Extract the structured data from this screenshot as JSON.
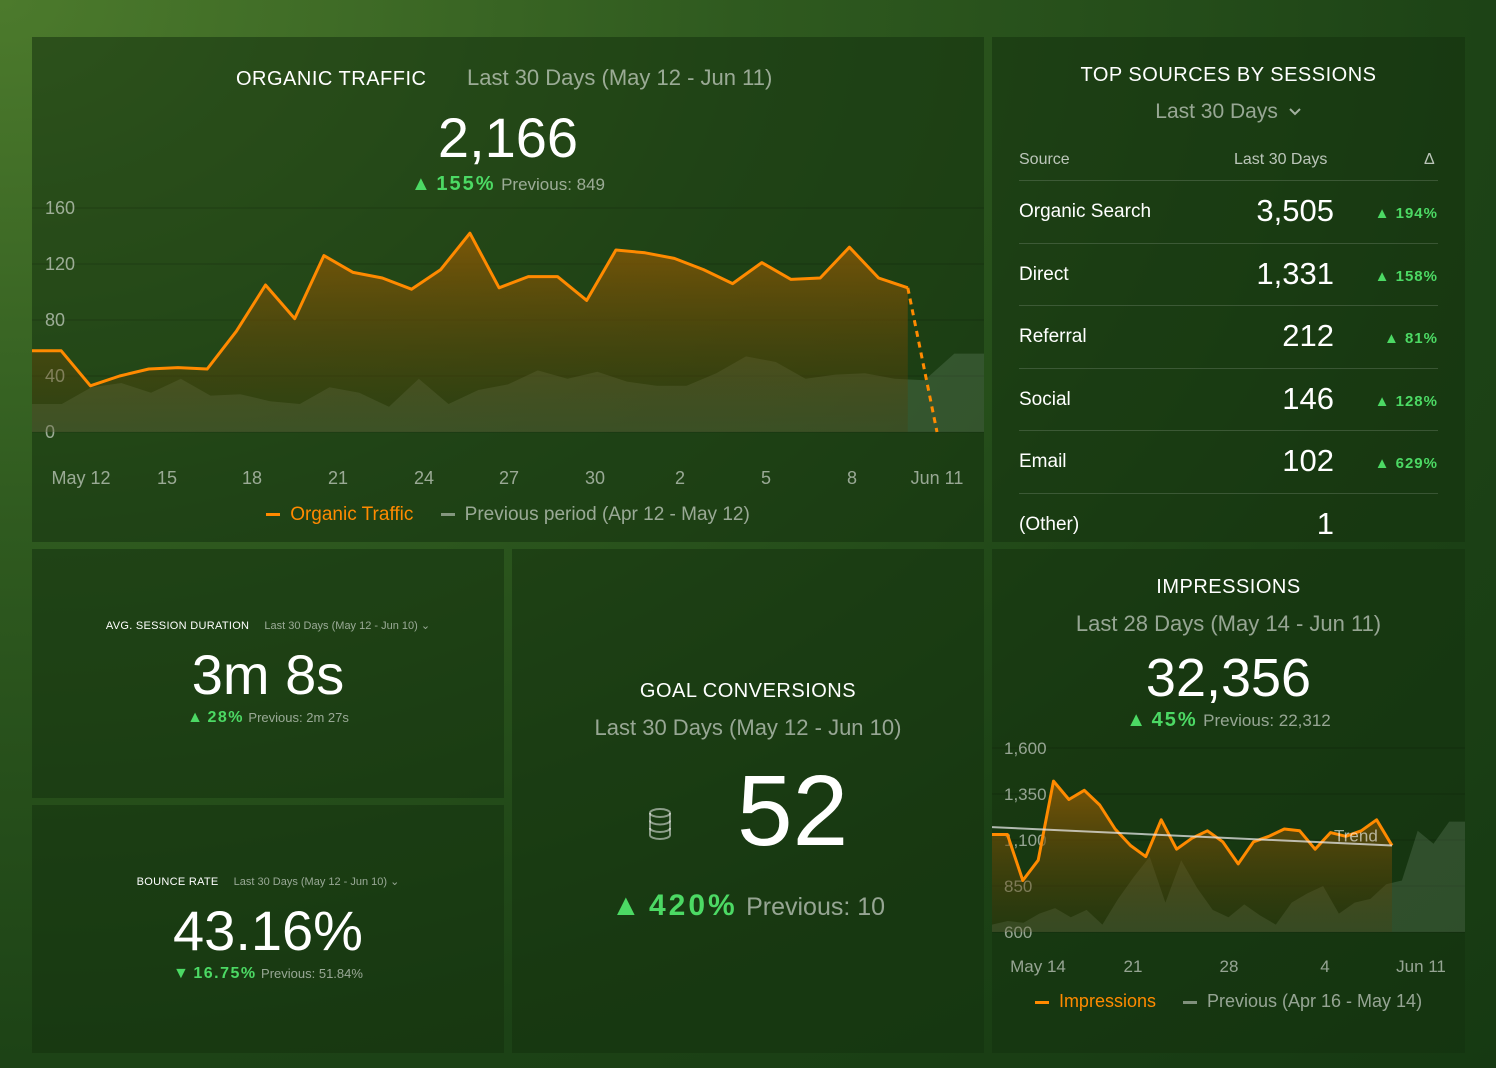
{
  "colors": {
    "accent_orange": "#ff8a00",
    "positive_green": "#4cd964",
    "muted_text": "rgba(255,255,255,0.55)",
    "previous_series": "#6b8a66"
  },
  "organic": {
    "title": "ORGANIC TRAFFIC",
    "range": "Last 30 Days (May 12 - Jun 11)",
    "value": "2,166",
    "change": "155%",
    "change_direction": "up",
    "previous": "Previous: 849",
    "legend_current": "Organic Traffic",
    "legend_previous": "Previous period (Apr 12 - May 12)"
  },
  "sources": {
    "title": "TOP SOURCES BY SESSIONS",
    "range": "Last 30 Days",
    "header_source": "Source",
    "header_value": "Last 30 Days",
    "header_delta": "Δ",
    "rows": [
      {
        "name": "Organic Search",
        "value": "3,505",
        "delta": "194%"
      },
      {
        "name": "Direct",
        "value": "1,331",
        "delta": "158%"
      },
      {
        "name": "Referral",
        "value": "212",
        "delta": "81%"
      },
      {
        "name": "Social",
        "value": "146",
        "delta": "128%"
      },
      {
        "name": "Email",
        "value": "102",
        "delta": "629%"
      },
      {
        "name": "(Other)",
        "value": "1",
        "delta": ""
      }
    ]
  },
  "avg_session": {
    "title": "AVG. SESSION DURATION",
    "range": "Last 30 Days (May 12 - Jun 10)",
    "value": "3m 8s",
    "change": "28%",
    "change_direction": "up",
    "previous": "Previous: 2m 27s"
  },
  "bounce": {
    "title": "BOUNCE RATE",
    "range": "Last 30 Days (May 12 - Jun 10)",
    "value": "43.16%",
    "change": "16.75%",
    "change_direction": "down",
    "previous": "Previous: 51.84%"
  },
  "goal": {
    "title": "GOAL CONVERSIONS",
    "range": "Last 30 Days (May 12 - Jun 10)",
    "value": "52",
    "change": "420%",
    "change_direction": "up",
    "previous": "Previous: 10",
    "icon": "database-icon"
  },
  "impressions": {
    "title": "IMPRESSIONS",
    "range": "Last 28 Days (May 14 - Jun 11)",
    "value": "32,356",
    "change": "45%",
    "change_direction": "up",
    "previous": "Previous: 22,312",
    "trend_label": "Trend",
    "legend_current": "Impressions",
    "legend_previous": "Previous (Apr 16 - May 14)"
  },
  "chart_data": [
    {
      "type": "area",
      "name": "organic-traffic-chart",
      "ylim": [
        0,
        160
      ],
      "yticks": [
        "0",
        "40",
        "80",
        "120",
        "160"
      ],
      "xticks": [
        "May 12",
        "15",
        "18",
        "21",
        "24",
        "27",
        "30",
        "2",
        "5",
        "8",
        "Jun 11"
      ],
      "series": [
        {
          "name": "Organic Traffic",
          "values": [
            58,
            58,
            33,
            40,
            45,
            46,
            45,
            72,
            105,
            81,
            126,
            114,
            110,
            102,
            116,
            142,
            103,
            111,
            111,
            94,
            130,
            128,
            124,
            116,
            106,
            121,
            109,
            110,
            132,
            110,
            103,
            0
          ]
        },
        {
          "name": "Previous period (Apr 12 - May 12)",
          "values": [
            20,
            20,
            32,
            35,
            28,
            38,
            26,
            27,
            22,
            20,
            32,
            28,
            18,
            38,
            20,
            30,
            34,
            44,
            38,
            43,
            36,
            33,
            33,
            42,
            54,
            50,
            38,
            41,
            42,
            38,
            37,
            56,
            56
          ]
        }
      ]
    },
    {
      "type": "area",
      "name": "impressions-chart",
      "ylim": [
        600,
        1600
      ],
      "yticks": [
        "600",
        "850",
        "1,100",
        "1,350",
        "1,600"
      ],
      "xticks": [
        "May 14",
        "21",
        "28",
        "4",
        "Jun 11"
      ],
      "series": [
        {
          "name": "Impressions",
          "values": [
            1130,
            1130,
            880,
            990,
            1420,
            1320,
            1370,
            1290,
            1160,
            1070,
            1010,
            1210,
            1050,
            1110,
            1150,
            1090,
            970,
            1090,
            1120,
            1160,
            1150,
            1050,
            1140,
            1120,
            1150,
            1210,
            1070
          ]
        },
        {
          "name": "Previous (Apr 16 - May 14)",
          "values": [
            640,
            660,
            650,
            700,
            730,
            680,
            720,
            640,
            780,
            900,
            1010,
            760,
            990,
            840,
            720,
            680,
            750,
            690,
            640,
            760,
            810,
            850,
            700,
            760,
            780,
            860,
            880,
            1150,
            1080,
            1200,
            1200
          ]
        },
        {
          "name": "Trend",
          "values": [
            1170,
            1070
          ]
        }
      ]
    }
  ]
}
